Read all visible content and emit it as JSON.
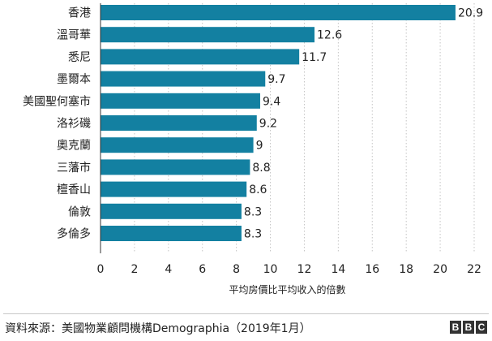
{
  "chart_data": {
    "type": "bar",
    "orientation": "horizontal",
    "categories": [
      "香港",
      "溫哥華",
      "悉尼",
      "墨爾本",
      "美國聖何塞市",
      "洛衫磯",
      "奧克蘭",
      "三藩市",
      "檀香山",
      "倫敦",
      "多倫多"
    ],
    "values": [
      20.9,
      12.6,
      11.7,
      9.7,
      9.4,
      9.2,
      9,
      8.8,
      8.6,
      8.3,
      8.3
    ],
    "value_labels": [
      "20.9",
      "12.6",
      "11.7",
      "9.7",
      "9.4",
      "9.2",
      "9",
      "8.8",
      "8.6",
      "8.3",
      "8.3"
    ],
    "xlabel": "平均房價比平均收入的倍數",
    "xlim": [
      0,
      22
    ],
    "xticks": [
      0,
      2,
      4,
      6,
      8,
      10,
      12,
      14,
      16,
      18,
      20,
      22
    ],
    "grid": "vertical-dotted",
    "bar_color": "#1380a1"
  },
  "footer": {
    "source": "資料來源：美國物業顧問機構Demographia（2019年1月）",
    "logo": [
      "B",
      "B",
      "C"
    ]
  }
}
